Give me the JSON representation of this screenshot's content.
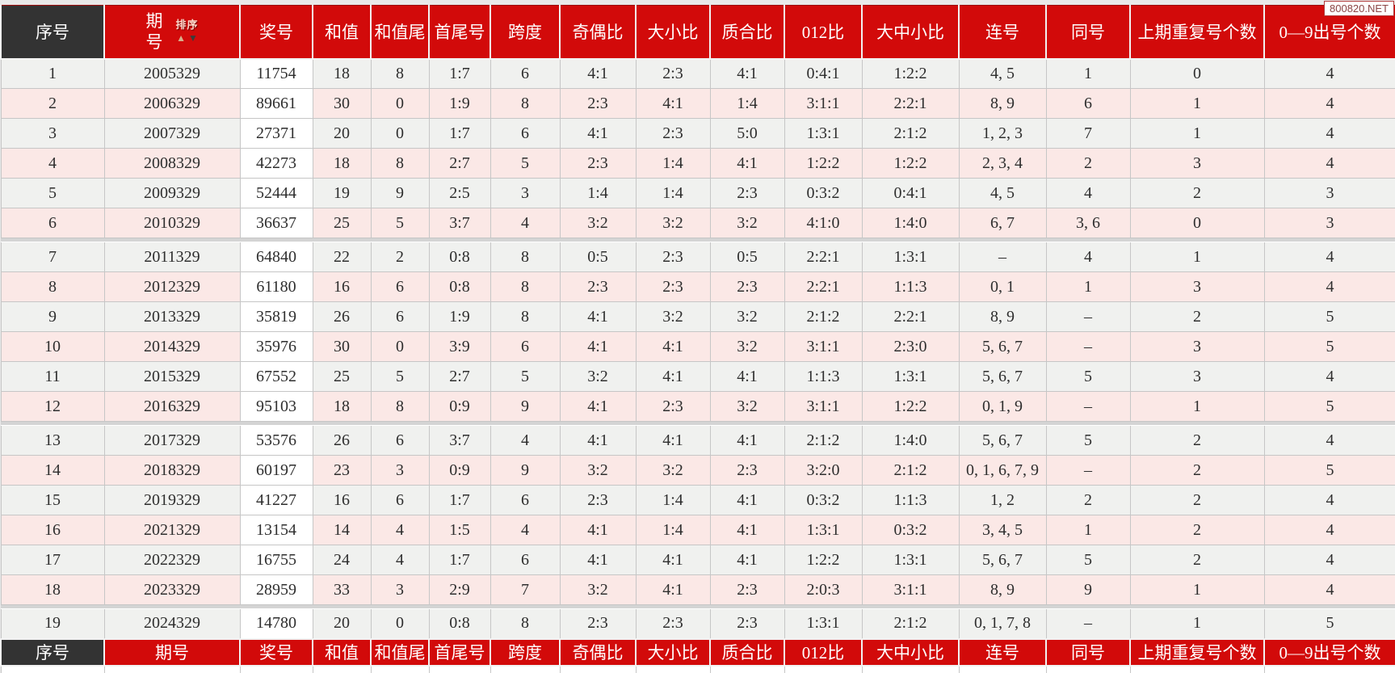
{
  "watermark": {
    "text": "800820.NET"
  },
  "header": {
    "columns": [
      "序号",
      "期号",
      "奖号",
      "和值",
      "和值尾",
      "首尾号",
      "跨度",
      "奇偶比",
      "大小比",
      "质合比",
      "012比",
      "大中小比",
      "连号",
      "同号",
      "上期重复号个数",
      "0—9出号个数"
    ],
    "sort": {
      "label": "排序",
      "up_arrow": "▲",
      "down_arrow": "▼"
    }
  },
  "footer": {
    "columns": [
      "序号",
      "期号",
      "奖号",
      "和值",
      "和值尾",
      "首尾号",
      "跨度",
      "奇偶比",
      "大小比",
      "质合比",
      "012比",
      "大中小比",
      "连号",
      "同号",
      "上期重复号个数",
      "0—9出号个数"
    ]
  },
  "group_breaks_after": [
    6,
    12,
    18
  ],
  "rows": [
    [
      "1",
      "2005329",
      "11754",
      "18",
      "8",
      "1:7",
      "6",
      "4:1",
      "2:3",
      "4:1",
      "0:4:1",
      "1:2:2",
      "4, 5",
      "1",
      "0",
      "4"
    ],
    [
      "2",
      "2006329",
      "89661",
      "30",
      "0",
      "1:9",
      "8",
      "2:3",
      "4:1",
      "1:4",
      "3:1:1",
      "2:2:1",
      "8, 9",
      "6",
      "1",
      "4"
    ],
    [
      "3",
      "2007329",
      "27371",
      "20",
      "0",
      "1:7",
      "6",
      "4:1",
      "2:3",
      "5:0",
      "1:3:1",
      "2:1:2",
      "1, 2, 3",
      "7",
      "1",
      "4"
    ],
    [
      "4",
      "2008329",
      "42273",
      "18",
      "8",
      "2:7",
      "5",
      "2:3",
      "1:4",
      "4:1",
      "1:2:2",
      "1:2:2",
      "2, 3, 4",
      "2",
      "3",
      "4"
    ],
    [
      "5",
      "2009329",
      "52444",
      "19",
      "9",
      "2:5",
      "3",
      "1:4",
      "1:4",
      "2:3",
      "0:3:2",
      "0:4:1",
      "4, 5",
      "4",
      "2",
      "3"
    ],
    [
      "6",
      "2010329",
      "36637",
      "25",
      "5",
      "3:7",
      "4",
      "3:2",
      "3:2",
      "3:2",
      "4:1:0",
      "1:4:0",
      "6, 7",
      "3, 6",
      "0",
      "3"
    ],
    [
      "7",
      "2011329",
      "64840",
      "22",
      "2",
      "0:8",
      "8",
      "0:5",
      "2:3",
      "0:5",
      "2:2:1",
      "1:3:1",
      "–",
      "4",
      "1",
      "4"
    ],
    [
      "8",
      "2012329",
      "61180",
      "16",
      "6",
      "0:8",
      "8",
      "2:3",
      "2:3",
      "2:3",
      "2:2:1",
      "1:1:3",
      "0, 1",
      "1",
      "3",
      "4"
    ],
    [
      "9",
      "2013329",
      "35819",
      "26",
      "6",
      "1:9",
      "8",
      "4:1",
      "3:2",
      "3:2",
      "2:1:2",
      "2:2:1",
      "8, 9",
      "–",
      "2",
      "5"
    ],
    [
      "10",
      "2014329",
      "35976",
      "30",
      "0",
      "3:9",
      "6",
      "4:1",
      "4:1",
      "3:2",
      "3:1:1",
      "2:3:0",
      "5, 6, 7",
      "–",
      "3",
      "5"
    ],
    [
      "11",
      "2015329",
      "67552",
      "25",
      "5",
      "2:7",
      "5",
      "3:2",
      "4:1",
      "4:1",
      "1:1:3",
      "1:3:1",
      "5, 6, 7",
      "5",
      "3",
      "4"
    ],
    [
      "12",
      "2016329",
      "95103",
      "18",
      "8",
      "0:9",
      "9",
      "4:1",
      "2:3",
      "3:2",
      "3:1:1",
      "1:2:2",
      "0, 1, 9",
      "–",
      "1",
      "5"
    ],
    [
      "13",
      "2017329",
      "53576",
      "26",
      "6",
      "3:7",
      "4",
      "4:1",
      "4:1",
      "4:1",
      "2:1:2",
      "1:4:0",
      "5, 6, 7",
      "5",
      "2",
      "4"
    ],
    [
      "14",
      "2018329",
      "60197",
      "23",
      "3",
      "0:9",
      "9",
      "3:2",
      "3:2",
      "2:3",
      "3:2:0",
      "2:1:2",
      "0, 1, 6, 7, 9",
      "–",
      "2",
      "5"
    ],
    [
      "15",
      "2019329",
      "41227",
      "16",
      "6",
      "1:7",
      "6",
      "2:3",
      "1:4",
      "4:1",
      "0:3:2",
      "1:1:3",
      "1, 2",
      "2",
      "2",
      "4"
    ],
    [
      "16",
      "2021329",
      "13154",
      "14",
      "4",
      "1:5",
      "4",
      "4:1",
      "1:4",
      "4:1",
      "1:3:1",
      "0:3:2",
      "3, 4, 5",
      "1",
      "2",
      "4"
    ],
    [
      "17",
      "2022329",
      "16755",
      "24",
      "4",
      "1:7",
      "6",
      "4:1",
      "4:1",
      "4:1",
      "1:2:2",
      "1:3:1",
      "5, 6, 7",
      "5",
      "2",
      "4"
    ],
    [
      "18",
      "2023329",
      "28959",
      "33",
      "3",
      "2:9",
      "7",
      "3:2",
      "4:1",
      "2:3",
      "2:0:3",
      "3:1:1",
      "8, 9",
      "9",
      "1",
      "4"
    ],
    [
      "19",
      "2024329",
      "14780",
      "20",
      "0",
      "0:8",
      "8",
      "2:3",
      "2:3",
      "2:3",
      "1:3:1",
      "2:1:2",
      "0, 1, 7, 8",
      "–",
      "1",
      "5"
    ]
  ],
  "colors": {
    "header_red": "#d20a0a",
    "header_dark": "#333333",
    "row_odd": "#f0f1ef",
    "row_even": "#fbe8e6",
    "prize_cell": "#ffffff",
    "border": "#c6c6c6",
    "separator": "#d4d4d4",
    "page_bg": "#e9e9e9"
  }
}
